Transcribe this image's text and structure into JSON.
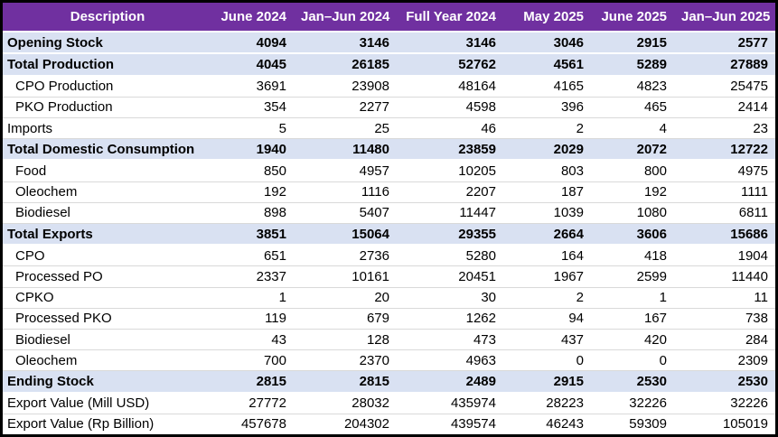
{
  "chart_data": {
    "type": "table",
    "columns": [
      "Description",
      "June 2024",
      "Jan–Jun 2024",
      "Full Year 2024",
      "May 2025",
      "June 2025",
      "Jan–Jun 2025"
    ],
    "rows": [
      {
        "label": "Opening Stock",
        "emphasis": "total",
        "indent": false,
        "values": [
          4094,
          3146,
          3146,
          3046,
          2915,
          2577
        ]
      },
      {
        "label": "Total Production",
        "emphasis": "total",
        "indent": false,
        "values": [
          4045,
          26185,
          52762,
          4561,
          5289,
          27889
        ]
      },
      {
        "label": "CPO Production",
        "emphasis": "normal",
        "indent": true,
        "values": [
          3691,
          23908,
          48164,
          4165,
          4823,
          25475
        ]
      },
      {
        "label": "PKO Production",
        "emphasis": "normal",
        "indent": true,
        "values": [
          354,
          2277,
          4598,
          396,
          465,
          2414
        ]
      },
      {
        "label": "Imports",
        "emphasis": "normal",
        "indent": false,
        "values": [
          5,
          25,
          46,
          2,
          4,
          23
        ]
      },
      {
        "label": "Total Domestic Consumption",
        "emphasis": "total",
        "indent": false,
        "values": [
          1940,
          11480,
          23859,
          2029,
          2072,
          12722
        ]
      },
      {
        "label": "Food",
        "emphasis": "normal",
        "indent": true,
        "values": [
          850,
          4957,
          10205,
          803,
          800,
          4975
        ]
      },
      {
        "label": "Oleochem",
        "emphasis": "normal",
        "indent": true,
        "values": [
          192,
          1116,
          2207,
          187,
          192,
          1111
        ]
      },
      {
        "label": "Biodiesel",
        "emphasis": "normal",
        "indent": true,
        "values": [
          898,
          5407,
          11447,
          1039,
          1080,
          6811
        ]
      },
      {
        "label": "Total Exports",
        "emphasis": "total",
        "indent": false,
        "values": [
          3851,
          15064,
          29355,
          2664,
          3606,
          15686
        ]
      },
      {
        "label": "CPO",
        "emphasis": "normal",
        "indent": true,
        "values": [
          651,
          2736,
          5280,
          164,
          418,
          1904
        ]
      },
      {
        "label": "Processed PO",
        "emphasis": "normal",
        "indent": true,
        "values": [
          2337,
          10161,
          20451,
          1967,
          2599,
          11440
        ]
      },
      {
        "label": "CPKO",
        "emphasis": "normal",
        "indent": true,
        "values": [
          1,
          20,
          30,
          2,
          1,
          11
        ]
      },
      {
        "label": "Processed PKO",
        "emphasis": "normal",
        "indent": true,
        "values": [
          119,
          679,
          1262,
          94,
          167,
          738
        ]
      },
      {
        "label": "Biodiesel",
        "emphasis": "normal",
        "indent": true,
        "values": [
          43,
          128,
          473,
          437,
          420,
          284
        ]
      },
      {
        "label": "Oleochem",
        "emphasis": "normal",
        "indent": true,
        "values": [
          700,
          2370,
          4963,
          0,
          0,
          2309
        ]
      },
      {
        "label": "Ending Stock",
        "emphasis": "total",
        "indent": false,
        "values": [
          2815,
          2815,
          2489,
          2915,
          2530,
          2530
        ]
      },
      {
        "label": "Export Value (Mill USD)",
        "emphasis": "normal",
        "indent": false,
        "values": [
          27772,
          28032,
          435974,
          28223,
          32226,
          32226
        ]
      },
      {
        "label": "Export Value (Rp Billion)",
        "emphasis": "normal",
        "indent": false,
        "values": [
          457678,
          204302,
          439574,
          46243,
          59309,
          105019
        ]
      }
    ]
  },
  "colors": {
    "header_bg": "#7030A0",
    "header_text": "#FFFFFF",
    "total_row_bg": "#D9E1F2",
    "gridline": "#D9D9D9",
    "outer_border": "#000000",
    "body_text": "#000000"
  }
}
